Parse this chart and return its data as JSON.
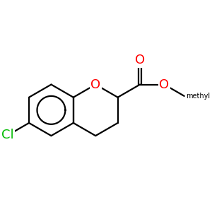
{
  "background": "#ffffff",
  "bond_color": "#000000",
  "bond_width": 1.6,
  "atom_colors": {
    "O": "#ff0000",
    "Cl": "#00bb00",
    "C": "#000000"
  },
  "font_size_atoms": 13,
  "scale": 1.0
}
